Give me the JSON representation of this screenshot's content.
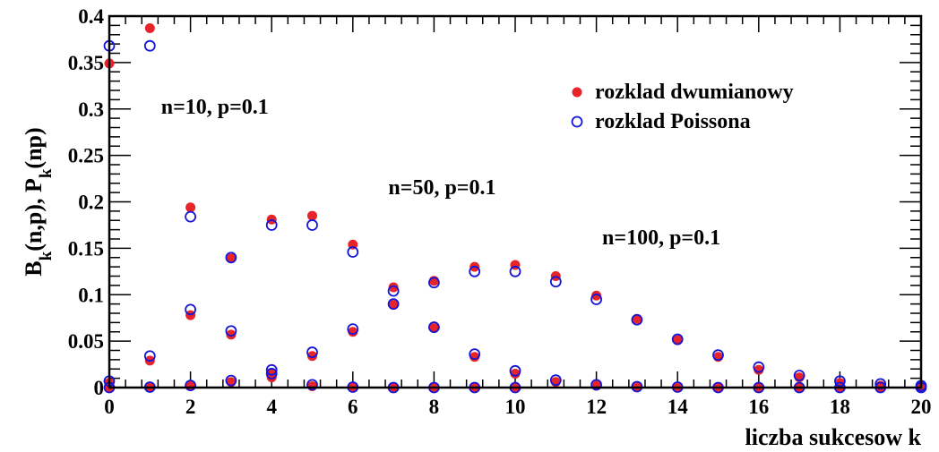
{
  "chart_data": {
    "type": "scatter",
    "xlabel": "liczba sukcesow k",
    "ylabel": "B_k(n,p), P_k(np)",
    "xlim": [
      0,
      20
    ],
    "ylim": [
      0,
      0.4
    ],
    "x_ticks": [
      0,
      2,
      4,
      6,
      8,
      10,
      12,
      14,
      16,
      18,
      20
    ],
    "x_tick_labels": [
      "0",
      "2",
      "4",
      "6",
      "8",
      "10",
      "12",
      "14",
      "16",
      "18",
      "20"
    ],
    "y_ticks": [
      0,
      0.05,
      0.1,
      0.15,
      0.2,
      0.25,
      0.3,
      0.35,
      0.4
    ],
    "y_tick_labels": [
      "0",
      "0.05",
      "0.1",
      "0.15",
      "0.2",
      "0.25",
      "0.3",
      "0.35",
      "0.4"
    ],
    "grid": false,
    "legend_position": "top-right",
    "legend": [
      {
        "label": "rozklad dwumianowy",
        "marker": "filled-circle",
        "color": "#e8242b"
      },
      {
        "label": "rozklad Poissona",
        "marker": "open-circle",
        "color": "#1515d8"
      }
    ],
    "annotations": [
      {
        "text": "n=10, p=0.1",
        "x": 2.6,
        "y": 0.295
      },
      {
        "text": "n=50, p=0.1",
        "x": 8.2,
        "y": 0.208
      },
      {
        "text": "n=100, p=0.1",
        "x": 13.6,
        "y": 0.154
      }
    ],
    "series": [
      {
        "name": "rozklad dwumianowy",
        "group": "n=10, p=0.1",
        "marker": "filled",
        "color": "#e8242b",
        "x": [
          0,
          1,
          2,
          3,
          4,
          5,
          6,
          7,
          8,
          9,
          10
        ],
        "y": [
          0.349,
          0.387,
          0.194,
          0.057,
          0.011,
          0.0015,
          0.0001,
          0,
          0,
          0,
          0
        ]
      },
      {
        "name": "rozklad Poissona",
        "group": "n=10, p=0.1",
        "marker": "open",
        "color": "#1515d8",
        "x": [
          0,
          1,
          2,
          3,
          4,
          5,
          6,
          7,
          8,
          9,
          10
        ],
        "y": [
          0.368,
          0.368,
          0.184,
          0.061,
          0.015,
          0.003,
          0.0005,
          0,
          0,
          0,
          0
        ]
      },
      {
        "name": "rozklad dwumianowy",
        "group": "n=50, p=0.1",
        "marker": "filled",
        "color": "#e8242b",
        "x": [
          0,
          1,
          2,
          3,
          4,
          5,
          6,
          7,
          8,
          9,
          10,
          11,
          12,
          13,
          14,
          15,
          16,
          17,
          18,
          19,
          20
        ],
        "y": [
          0.005,
          0.029,
          0.078,
          0.139,
          0.181,
          0.185,
          0.154,
          0.108,
          0.064,
          0.033,
          0.015,
          0.006,
          0.002,
          0.0007,
          0.0002,
          0,
          0,
          0,
          0,
          0,
          0
        ]
      },
      {
        "name": "rozklad Poissona",
        "group": "n=50, p=0.1",
        "marker": "open",
        "color": "#1515d8",
        "x": [
          0,
          1,
          2,
          3,
          4,
          5,
          6,
          7,
          8,
          9,
          10,
          11,
          12,
          13,
          14,
          15,
          16,
          17,
          18,
          19,
          20
        ],
        "y": [
          0.007,
          0.034,
          0.084,
          0.14,
          0.175,
          0.175,
          0.146,
          0.104,
          0.065,
          0.036,
          0.018,
          0.008,
          0.003,
          0.001,
          0.0005,
          0,
          0,
          0,
          0,
          0,
          0
        ]
      },
      {
        "name": "rozklad dwumianowy",
        "group": "n=100, p=0.1",
        "marker": "filled",
        "color": "#e8242b",
        "x": [
          0,
          1,
          2,
          3,
          4,
          5,
          6,
          7,
          8,
          9,
          10,
          11,
          12,
          13,
          14,
          15,
          16,
          17,
          18,
          19,
          20
        ],
        "y": [
          0,
          0.0003,
          0.0016,
          0.0059,
          0.016,
          0.034,
          0.06,
          0.089,
          0.115,
          0.13,
          0.132,
          0.12,
          0.099,
          0.074,
          0.051,
          0.033,
          0.019,
          0.011,
          0.005,
          0.002,
          0.001
        ]
      },
      {
        "name": "rozklad Poissona",
        "group": "n=100, p=0.1",
        "marker": "open",
        "color": "#1515d8",
        "x": [
          0,
          1,
          2,
          3,
          4,
          5,
          6,
          7,
          8,
          9,
          10,
          11,
          12,
          13,
          14,
          15,
          16,
          17,
          18,
          19,
          20
        ],
        "y": [
          0,
          0.0005,
          0.0023,
          0.0076,
          0.019,
          0.038,
          0.063,
          0.09,
          0.113,
          0.125,
          0.125,
          0.114,
          0.095,
          0.073,
          0.052,
          0.035,
          0.022,
          0.013,
          0.007,
          0.004,
          0.002
        ]
      }
    ]
  }
}
